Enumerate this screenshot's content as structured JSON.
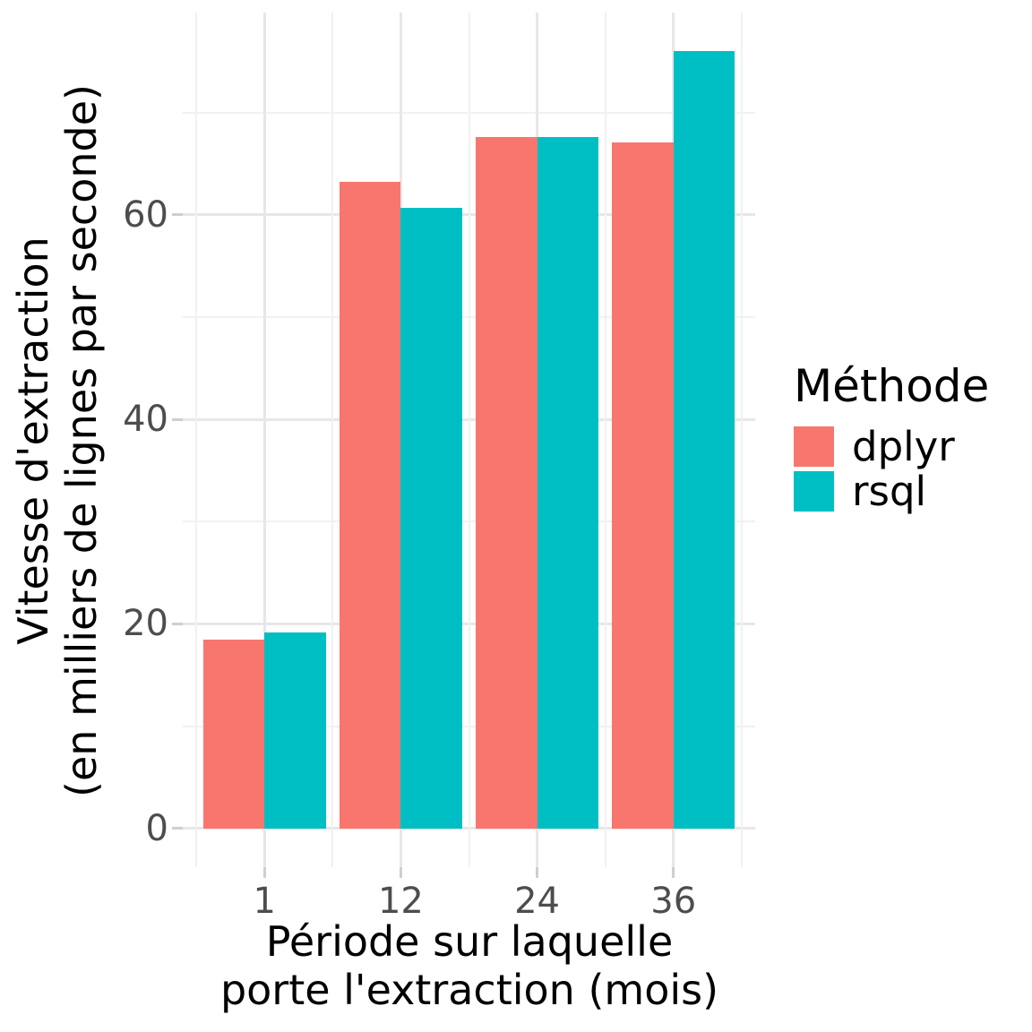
{
  "chart_data": {
    "type": "bar",
    "categories": [
      "1",
      "12",
      "24",
      "36"
    ],
    "series": [
      {
        "name": "dplyr",
        "color": "#F8766D",
        "values": [
          18.5,
          63.2,
          67.6,
          67.1
        ]
      },
      {
        "name": "rsql",
        "color": "#00BFC4",
        "values": [
          19.2,
          60.7,
          67.6,
          76.0
        ]
      }
    ],
    "title": "",
    "xlabel": "Période sur laquelle porte l'extraction (mois)",
    "xlabel_lines": [
      "Période sur laquelle",
      "porte l'extraction (mois)"
    ],
    "ylabel": "Vitesse d'extraction (en milliers de lignes par seconde)",
    "ylabel_lines": [
      "Vitesse d'extraction",
      "(en milliers de lignes par seconde)"
    ],
    "ylim": [
      0,
      76
    ],
    "yticks": [
      0,
      20,
      40,
      60
    ],
    "yticks_minor": [
      10,
      30,
      50,
      70
    ],
    "grid": "on",
    "legend_title": "Méthode",
    "legend_position": "right",
    "colors": {
      "grid_major": "#E7E7E7",
      "grid_minor": "#F1F1F1",
      "axis_text": "#4D4D4D",
      "title_text": "#000000",
      "tick_mark": "#CFCFCF",
      "background": "#FFFFFF"
    }
  }
}
